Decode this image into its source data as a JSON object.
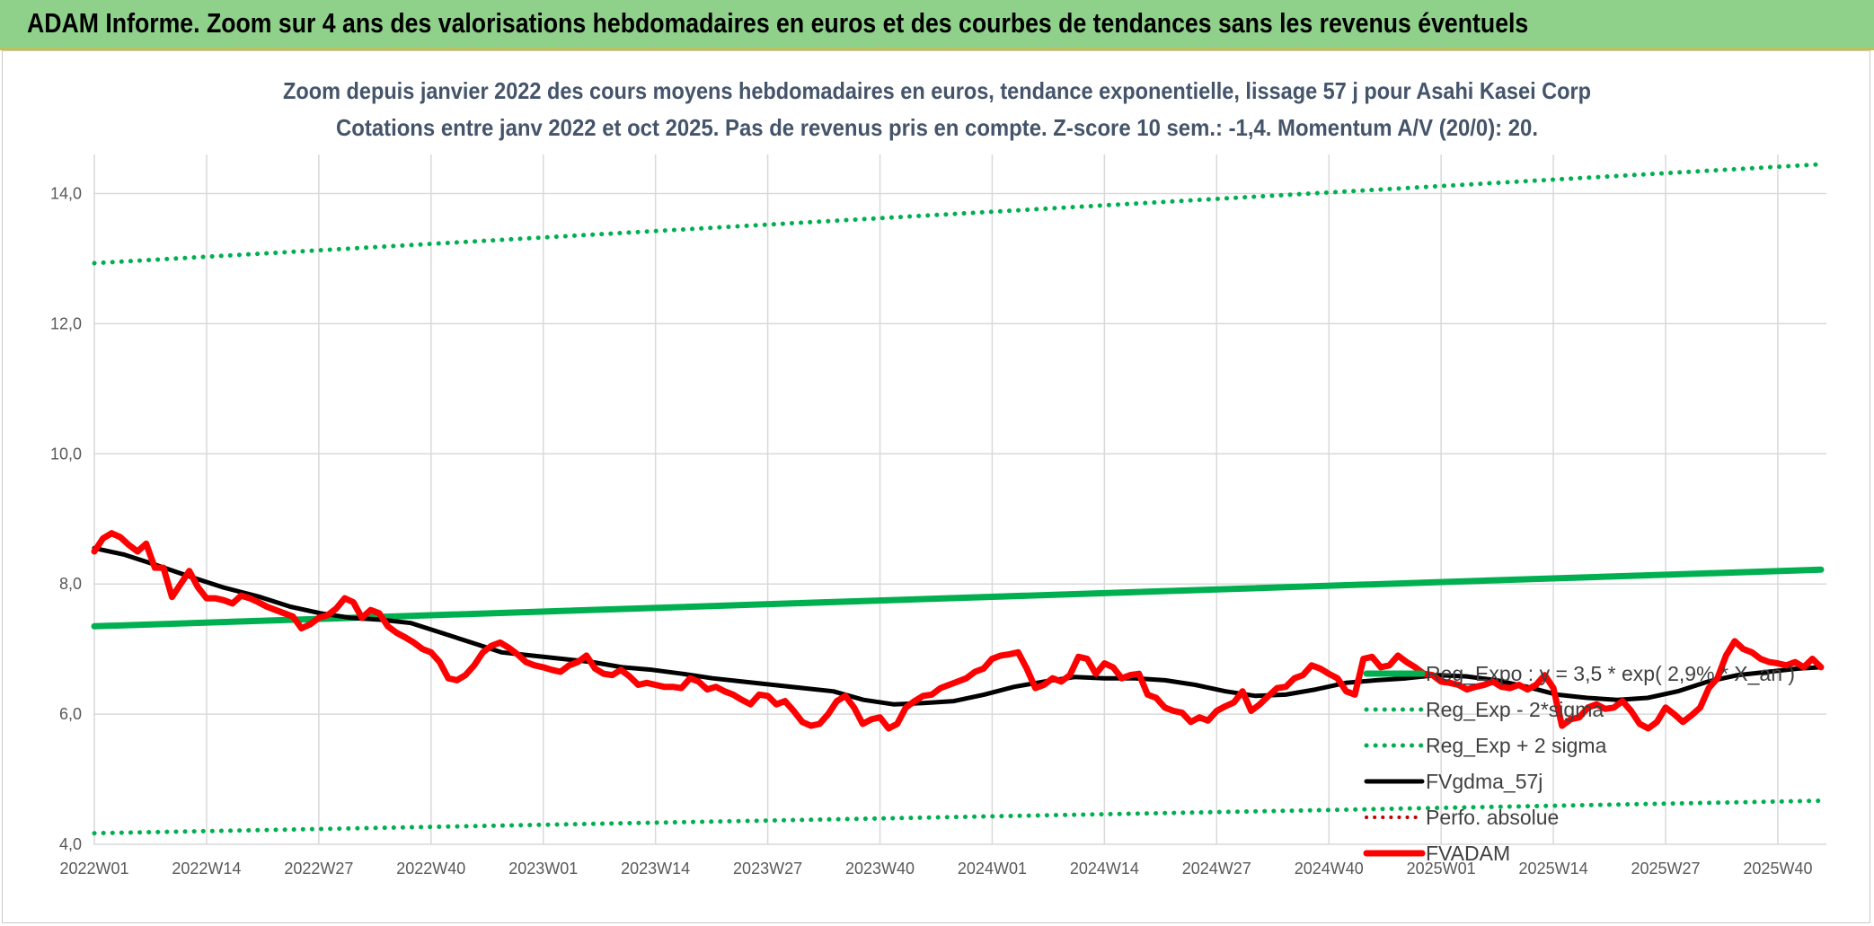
{
  "banner": {
    "title": "ADAM Informe. Zoom sur 4 ans des valorisations hebdomadaires en euros et des courbes de tendances sans les revenus éventuels"
  },
  "chart_data": {
    "type": "line",
    "title": "Zoom depuis janvier 2022 des cours moyens hebdomadaires en euros, tendance exponentielle, lissage 57 j pour Asahi Kasei Corp",
    "subtitle": "Cotations entre janv 2022 et oct 2025. Pas de revenus pris en compte. Z-score 10 sem.: -1,4. Momentum A/V (20/0): 20.",
    "xlabel": "",
    "ylabel": "",
    "ylim": [
      4.0,
      14.6
    ],
    "yticks": [
      "4,0",
      "6,0",
      "8,0",
      "10,0",
      "12,0",
      "14,0"
    ],
    "ytick_values": [
      4,
      6,
      8,
      10,
      12,
      14
    ],
    "x_tick_labels": [
      "2022W01",
      "2022W14",
      "2022W27",
      "2022W40",
      "2023W01",
      "2023W14",
      "2023W27",
      "2023W40",
      "2024W01",
      "2024W14",
      "2024W27",
      "2024W40",
      "2025W01",
      "2025W14",
      "2025W27",
      "2025W40"
    ],
    "x_tick_index": [
      0,
      13,
      26,
      39,
      52,
      65,
      78,
      91,
      104,
      117,
      130,
      143,
      156,
      169,
      182,
      195
    ],
    "x_count": 201,
    "grid": true,
    "legend_position": "right",
    "colors": {
      "reg_expo": "#00b050",
      "reg_band": "#00b050",
      "fvgdma": "#000000",
      "perfo": "#c00000",
      "fvadam": "#ff0000",
      "title": "#44546a",
      "grid": "#d9d9d9",
      "banner": "#8fd08a"
    },
    "series": [
      {
        "name": "Reg_Expo : y = 3,5 * exp( 2,9% *  X_an )",
        "style": "solid-thick",
        "points": [
          [
            0,
            7.35
          ],
          [
            200,
            8.22
          ]
        ]
      },
      {
        "name": "Reg_Exp - 2*sigma",
        "style": "dotted",
        "points": [
          [
            0,
            4.17
          ],
          [
            200,
            4.67
          ]
        ]
      },
      {
        "name": "Reg_Exp + 2 sigma",
        "style": "dotted",
        "points": [
          [
            0,
            12.93
          ],
          [
            200,
            14.45
          ]
        ]
      },
      {
        "name": "FVgdma_57j",
        "style": "solid",
        "points": [
          [
            0,
            8.55
          ],
          [
            4,
            8.45
          ],
          [
            8,
            8.3
          ],
          [
            13,
            8.1
          ],
          [
            17,
            7.95
          ],
          [
            22,
            7.8
          ],
          [
            26,
            7.65
          ],
          [
            30,
            7.55
          ],
          [
            34,
            7.48
          ],
          [
            38,
            7.45
          ],
          [
            42,
            7.4
          ],
          [
            46,
            7.25
          ],
          [
            50,
            7.1
          ],
          [
            54,
            6.95
          ],
          [
            58,
            6.9
          ],
          [
            62,
            6.85
          ],
          [
            66,
            6.8
          ],
          [
            70,
            6.72
          ],
          [
            74,
            6.68
          ],
          [
            78,
            6.62
          ],
          [
            82,
            6.55
          ],
          [
            86,
            6.5
          ],
          [
            90,
            6.45
          ],
          [
            94,
            6.4
          ],
          [
            98,
            6.35
          ],
          [
            102,
            6.22
          ],
          [
            106,
            6.15
          ],
          [
            110,
            6.17
          ],
          [
            114,
            6.2
          ],
          [
            118,
            6.3
          ],
          [
            122,
            6.42
          ],
          [
            126,
            6.5
          ],
          [
            130,
            6.57
          ],
          [
            134,
            6.55
          ],
          [
            138,
            6.55
          ],
          [
            142,
            6.52
          ],
          [
            146,
            6.45
          ],
          [
            150,
            6.35
          ],
          [
            154,
            6.28
          ],
          [
            158,
            6.3
          ],
          [
            162,
            6.38
          ],
          [
            166,
            6.48
          ],
          [
            170,
            6.52
          ],
          [
            174,
            6.55
          ],
          [
            178,
            6.6
          ],
          [
            182,
            6.58
          ],
          [
            186,
            6.52
          ],
          [
            190,
            6.42
          ],
          [
            194,
            6.3
          ],
          [
            198,
            6.25
          ],
          [
            202,
            6.22
          ],
          [
            206,
            6.25
          ],
          [
            210,
            6.35
          ],
          [
            214,
            6.5
          ],
          [
            218,
            6.6
          ],
          [
            222,
            6.65
          ],
          [
            226,
            6.7
          ],
          [
            229,
            6.72
          ]
        ]
      },
      {
        "name": "Perfo. absolue",
        "style": "dotted",
        "points": []
      },
      {
        "name": "FVADAM",
        "style": "solid-thick",
        "points": [
          [
            0,
            8.5
          ],
          [
            1,
            8.7
          ],
          [
            2,
            8.78
          ],
          [
            3,
            8.72
          ],
          [
            4,
            8.6
          ],
          [
            5,
            8.5
          ],
          [
            6,
            8.62
          ],
          [
            7,
            8.25
          ],
          [
            8,
            8.25
          ],
          [
            9,
            7.8
          ],
          [
            10,
            8.0
          ],
          [
            11,
            8.2
          ],
          [
            12,
            7.95
          ],
          [
            13,
            7.78
          ],
          [
            14,
            7.78
          ],
          [
            15,
            7.75
          ],
          [
            16,
            7.7
          ],
          [
            17,
            7.82
          ],
          [
            18,
            7.78
          ],
          [
            19,
            7.72
          ],
          [
            20,
            7.65
          ],
          [
            21,
            7.6
          ],
          [
            22,
            7.55
          ],
          [
            23,
            7.5
          ],
          [
            24,
            7.32
          ],
          [
            25,
            7.38
          ],
          [
            26,
            7.48
          ],
          [
            27,
            7.52
          ],
          [
            28,
            7.62
          ],
          [
            29,
            7.78
          ],
          [
            30,
            7.72
          ],
          [
            31,
            7.48
          ],
          [
            32,
            7.6
          ],
          [
            33,
            7.55
          ],
          [
            34,
            7.35
          ],
          [
            35,
            7.25
          ],
          [
            36,
            7.18
          ],
          [
            37,
            7.1
          ],
          [
            38,
            7.0
          ],
          [
            39,
            6.95
          ],
          [
            40,
            6.8
          ],
          [
            41,
            6.55
          ],
          [
            42,
            6.52
          ],
          [
            43,
            6.6
          ],
          [
            44,
            6.75
          ],
          [
            45,
            6.95
          ],
          [
            46,
            7.05
          ],
          [
            47,
            7.1
          ],
          [
            48,
            7.02
          ],
          [
            49,
            6.92
          ],
          [
            50,
            6.8
          ],
          [
            51,
            6.75
          ],
          [
            52,
            6.72
          ],
          [
            53,
            6.68
          ],
          [
            54,
            6.65
          ],
          [
            55,
            6.75
          ],
          [
            56,
            6.8
          ],
          [
            57,
            6.9
          ],
          [
            58,
            6.7
          ],
          [
            59,
            6.62
          ],
          [
            60,
            6.6
          ],
          [
            61,
            6.68
          ],
          [
            62,
            6.58
          ],
          [
            63,
            6.45
          ],
          [
            64,
            6.48
          ],
          [
            65,
            6.45
          ],
          [
            66,
            6.42
          ],
          [
            67,
            6.42
          ],
          [
            68,
            6.4
          ],
          [
            69,
            6.55
          ],
          [
            70,
            6.5
          ],
          [
            71,
            6.38
          ],
          [
            72,
            6.42
          ],
          [
            73,
            6.35
          ],
          [
            74,
            6.3
          ],
          [
            75,
            6.22
          ],
          [
            76,
            6.15
          ],
          [
            77,
            6.3
          ],
          [
            78,
            6.28
          ],
          [
            79,
            6.15
          ],
          [
            80,
            6.2
          ],
          [
            81,
            6.05
          ],
          [
            82,
            5.88
          ],
          [
            83,
            5.82
          ],
          [
            84,
            5.85
          ],
          [
            85,
            6.0
          ],
          [
            86,
            6.2
          ],
          [
            87,
            6.28
          ],
          [
            88,
            6.1
          ],
          [
            89,
            5.85
          ],
          [
            90,
            5.92
          ],
          [
            91,
            5.95
          ],
          [
            92,
            5.78
          ],
          [
            93,
            5.85
          ],
          [
            94,
            6.1
          ],
          [
            95,
            6.2
          ],
          [
            96,
            6.28
          ],
          [
            97,
            6.3
          ],
          [
            98,
            6.4
          ],
          [
            99,
            6.45
          ],
          [
            100,
            6.5
          ],
          [
            101,
            6.55
          ],
          [
            102,
            6.65
          ],
          [
            103,
            6.7
          ],
          [
            104,
            6.85
          ],
          [
            105,
            6.9
          ],
          [
            106,
            6.92
          ],
          [
            107,
            6.95
          ],
          [
            108,
            6.7
          ],
          [
            109,
            6.4
          ],
          [
            110,
            6.45
          ],
          [
            111,
            6.55
          ],
          [
            112,
            6.5
          ],
          [
            113,
            6.6
          ],
          [
            114,
            6.88
          ],
          [
            115,
            6.85
          ],
          [
            116,
            6.62
          ],
          [
            117,
            6.78
          ],
          [
            118,
            6.72
          ],
          [
            119,
            6.55
          ],
          [
            120,
            6.6
          ],
          [
            121,
            6.62
          ],
          [
            122,
            6.3
          ],
          [
            123,
            6.25
          ],
          [
            124,
            6.1
          ],
          [
            125,
            6.05
          ],
          [
            126,
            6.02
          ],
          [
            127,
            5.88
          ],
          [
            128,
            5.95
          ],
          [
            129,
            5.9
          ],
          [
            130,
            6.05
          ],
          [
            131,
            6.12
          ],
          [
            132,
            6.18
          ],
          [
            133,
            6.35
          ],
          [
            134,
            6.05
          ],
          [
            135,
            6.15
          ],
          [
            136,
            6.28
          ],
          [
            137,
            6.4
          ],
          [
            138,
            6.42
          ],
          [
            139,
            6.55
          ],
          [
            140,
            6.6
          ],
          [
            141,
            6.75
          ],
          [
            142,
            6.7
          ],
          [
            143,
            6.62
          ],
          [
            144,
            6.55
          ],
          [
            145,
            6.35
          ],
          [
            146,
            6.3
          ],
          [
            147,
            6.85
          ],
          [
            148,
            6.88
          ],
          [
            149,
            6.72
          ],
          [
            150,
            6.75
          ],
          [
            151,
            6.9
          ],
          [
            152,
            6.8
          ],
          [
            153,
            6.72
          ],
          [
            154,
            6.62
          ],
          [
            155,
            6.6
          ],
          [
            156,
            6.5
          ],
          [
            157,
            6.48
          ],
          [
            158,
            6.45
          ],
          [
            159,
            6.38
          ],
          [
            160,
            6.42
          ],
          [
            161,
            6.45
          ],
          [
            162,
            6.5
          ],
          [
            163,
            6.42
          ],
          [
            164,
            6.4
          ],
          [
            165,
            6.45
          ],
          [
            166,
            6.38
          ],
          [
            167,
            6.45
          ],
          [
            168,
            6.6
          ],
          [
            169,
            6.4
          ],
          [
            170,
            5.82
          ],
          [
            171,
            5.92
          ],
          [
            172,
            5.95
          ],
          [
            173,
            6.1
          ],
          [
            174,
            6.15
          ],
          [
            175,
            6.08
          ],
          [
            176,
            6.1
          ],
          [
            177,
            6.2
          ],
          [
            178,
            6.05
          ],
          [
            179,
            5.85
          ],
          [
            180,
            5.78
          ],
          [
            181,
            5.88
          ],
          [
            182,
            6.1
          ],
          [
            183,
            6.0
          ],
          [
            184,
            5.88
          ],
          [
            185,
            5.98
          ],
          [
            186,
            6.1
          ],
          [
            187,
            6.4
          ],
          [
            188,
            6.55
          ],
          [
            189,
            6.9
          ],
          [
            190,
            7.12
          ],
          [
            191,
            7.0
          ],
          [
            192,
            6.95
          ],
          [
            193,
            6.85
          ],
          [
            194,
            6.8
          ],
          [
            195,
            6.78
          ],
          [
            196,
            6.75
          ],
          [
            197,
            6.8
          ],
          [
            198,
            6.72
          ],
          [
            199,
            6.85
          ],
          [
            200,
            6.72
          ]
        ]
      }
    ]
  }
}
